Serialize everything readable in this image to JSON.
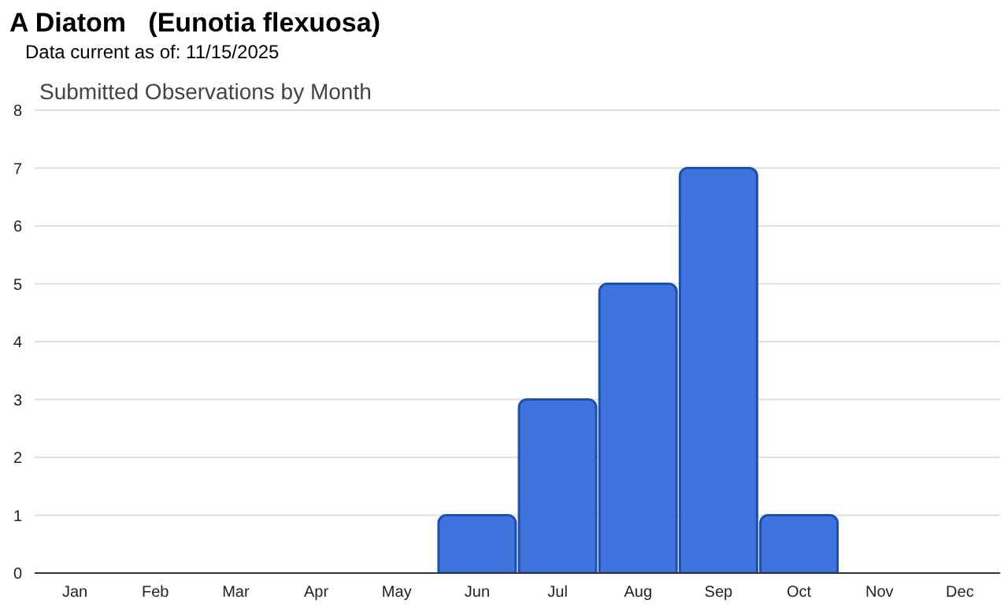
{
  "chart_data": {
    "type": "bar",
    "title": "A Diatom   (Eunotia flexuosa)",
    "subtitle": "Data current as of: 11/15/2025",
    "annotations": [
      "Submitted Observations by Month"
    ],
    "categories": [
      "Jan",
      "Feb",
      "Mar",
      "Apr",
      "May",
      "Jun",
      "Jul",
      "Aug",
      "Sep",
      "Oct",
      "Nov",
      "Dec"
    ],
    "values": [
      0,
      0,
      0,
      0,
      0,
      1,
      3,
      5,
      7,
      1,
      0,
      0
    ],
    "color": "#3f74de",
    "ylim": [
      0,
      8
    ],
    "yticks": [
      0,
      1,
      2,
      3,
      4,
      5,
      6,
      7,
      8
    ],
    "grid": "y"
  }
}
